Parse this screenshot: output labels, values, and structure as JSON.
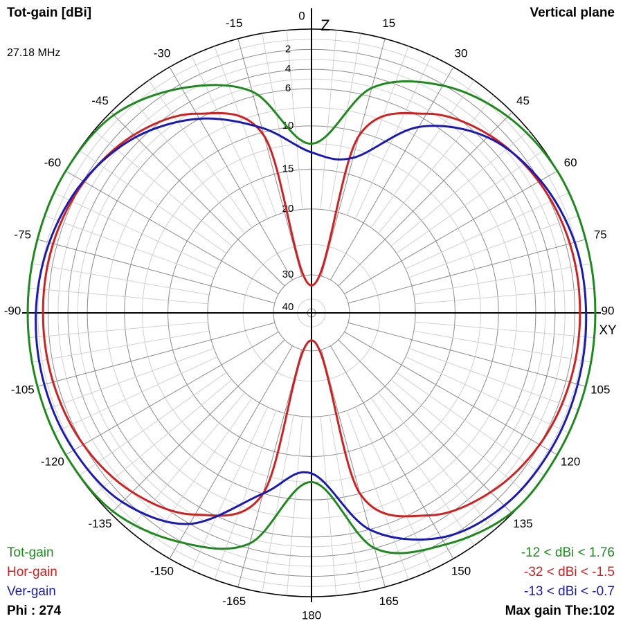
{
  "header": {
    "left_title": "Tot-gain [dBi]",
    "frequency": "27.18 MHz",
    "right_title": "Vertical plane"
  },
  "axes": {
    "z_label": "Z",
    "xy_label": "XY"
  },
  "legend": {
    "items": [
      {
        "label": "Tot-gain",
        "color": "#1e8a1e"
      },
      {
        "label": "Hor-gain",
        "color": "#d02020"
      },
      {
        "label": "Ver-gain",
        "color": "#1a1ab4"
      }
    ],
    "phi": "Phi : 274"
  },
  "ranges": [
    {
      "text": "-12 < dBi < 1.76",
      "color": "#1e8a1e"
    },
    {
      "text": "-32 < dBi < -1.5",
      "color": "#d02020"
    },
    {
      "text": "-13 < dBi < -0.7",
      "color": "#1a1ab4"
    }
  ],
  "max_gain": "Max gain The:102",
  "chart_data": {
    "type": "polar",
    "plane": "vertical",
    "angle_unit": "deg",
    "angle_labels": [
      "0",
      "15",
      "30",
      "45",
      "60",
      "75",
      "90",
      "105",
      "120",
      "135",
      "150",
      "165",
      "180",
      "-165",
      "-150",
      "-135",
      "-120",
      "-105",
      "-90",
      "-75",
      "-60",
      "-45",
      "-30",
      "-15"
    ],
    "radial_tick_labels": [
      "2",
      "4",
      "6",
      "10",
      "15",
      "20",
      "30",
      "40"
    ],
    "radial_min_db": -40,
    "radial_max_db": 0,
    "series": [
      {
        "name": "Tot-gain",
        "color": "#1e8a1e",
        "theta": [
          0,
          15,
          30,
          45,
          60,
          75,
          90,
          105,
          120,
          135,
          150,
          165,
          180,
          -165,
          -150,
          -135,
          -120,
          -105,
          -90,
          -75,
          -60,
          -45,
          -30,
          -15
        ],
        "gain_db": [
          -12,
          -5.1,
          -2.1,
          -0.6,
          0.4,
          1.3,
          1.7,
          1.5,
          0.9,
          -0.1,
          -1.6,
          -4,
          -12,
          -4.5,
          -1.9,
          -0.3,
          0.8,
          1.4,
          1.6,
          1.4,
          0.7,
          -0.4,
          -2.4,
          -5.5
        ]
      },
      {
        "name": "Hor-gain",
        "color": "#d02020",
        "theta": [
          0,
          15,
          30,
          45,
          60,
          75,
          90,
          105,
          120,
          135,
          150,
          165,
          180,
          -165,
          -150,
          -135,
          -120,
          -105,
          -90,
          -75,
          -60,
          -45,
          -30,
          -15
        ],
        "gain_db": [
          -32,
          -10.4,
          -5.4,
          -3.2,
          -2.1,
          -1.6,
          -1.5,
          -1.6,
          -2,
          -3,
          -5,
          -10,
          -32,
          -10,
          -5.1,
          -3,
          -2,
          -1.6,
          -1.5,
          -1.6,
          -2.1,
          -3.2,
          -5.4,
          -10.4
        ]
      },
      {
        "name": "Ver-gain",
        "color": "#1a1ab4",
        "theta": [
          0,
          15,
          30,
          45,
          60,
          75,
          90,
          105,
          120,
          135,
          150,
          165,
          180,
          -165,
          -150,
          -135,
          -120,
          -105,
          -90,
          -75,
          -60,
          -45,
          -30,
          -15
        ],
        "gain_db": [
          -13,
          -13,
          -7,
          -3.5,
          -1.9,
          -1.1,
          -0.9,
          -0.8,
          -0.8,
          -1.1,
          -2.4,
          -6,
          -13,
          -10,
          -4,
          -1.6,
          -0.9,
          -0.7,
          -0.8,
          -1.2,
          -2,
          -3.5,
          -6,
          -9.5
        ]
      }
    ]
  }
}
